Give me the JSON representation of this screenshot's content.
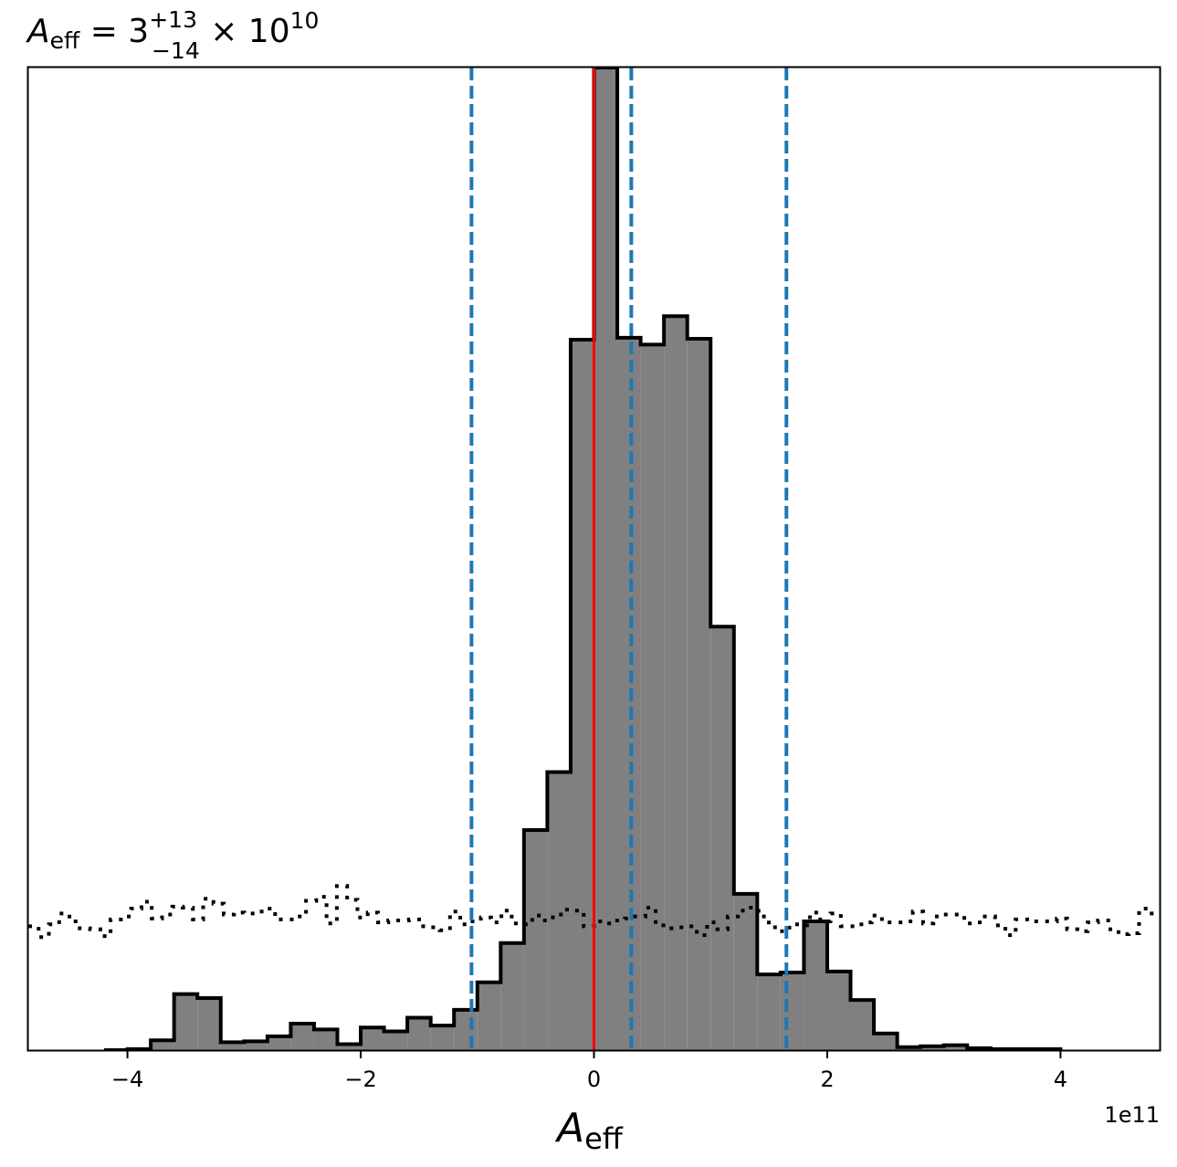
{
  "chart_data": {
    "type": "histogram",
    "title": {
      "main": "A",
      "main_sub": "eff",
      "equals": " = 3",
      "sup": "+13",
      "sub": "−14",
      "times": " × 10",
      "exp": "10"
    },
    "xlabel": {
      "main": "A",
      "sub": "eff"
    },
    "ylabel": "",
    "x_offset_label": "1e11",
    "xlim": [
      -4.85,
      4.85
    ],
    "ylim": [
      0,
      1.0
    ],
    "xticks": [
      -4,
      -2,
      0,
      2,
      4
    ],
    "xtick_labels": [
      "−4",
      "−2",
      "0",
      "2",
      "4"
    ],
    "yticks": [],
    "grid": false,
    "legend": "none",
    "bin_edges": [
      -4.2,
      -4.0,
      -3.8,
      -3.6,
      -3.4,
      -3.2,
      -3.0,
      -2.8,
      -2.6,
      -2.4,
      -2.2,
      -2.0,
      -1.8,
      -1.6,
      -1.4,
      -1.2,
      -1.0,
      -0.8,
      -0.6,
      -0.4,
      -0.2,
      0.0,
      0.2,
      0.4,
      0.6,
      0.8,
      1.0,
      1.2,
      1.4,
      1.6,
      1.8,
      2.0,
      2.2,
      2.4,
      2.6,
      2.8,
      3.0,
      3.2,
      3.4,
      3.6,
      3.8,
      4.0
    ],
    "series": [
      {
        "kind": "posterior-histogram",
        "fill": "#808080",
        "edge": "#000000",
        "counts": [
          0.0,
          0.001,
          0.01,
          0.057,
          0.053,
          0.008,
          0.009,
          0.014,
          0.027,
          0.021,
          0.006,
          0.023,
          0.019,
          0.033,
          0.025,
          0.041,
          0.069,
          0.109,
          0.224,
          0.283,
          0.723,
          1.0,
          0.725,
          0.718,
          0.747,
          0.724,
          0.431,
          0.159,
          0.077,
          0.079,
          0.131,
          0.08,
          0.051,
          0.017,
          0.003,
          0.004,
          0.005,
          0.002,
          0.001,
          0.001,
          0.001
        ]
      },
      {
        "kind": "prior-histogram",
        "line_style": "dotted",
        "edge": "#000000",
        "x_range": [
          -4.85,
          4.85
        ],
        "counts": [
          0.126,
          0.115,
          0.128,
          0.139,
          0.131,
          0.124,
          0.123,
          0.116,
          0.133,
          0.136,
          0.144,
          0.151,
          0.134,
          0.138,
          0.146,
          0.145,
          0.133,
          0.154,
          0.149,
          0.138,
          0.14,
          0.139,
          0.141,
          0.144,
          0.133,
          0.133,
          0.136,
          0.152,
          0.156,
          0.129,
          0.167,
          0.153,
          0.135,
          0.14,
          0.13,
          0.132,
          0.132,
          0.133,
          0.126,
          0.125,
          0.122,
          0.141,
          0.128,
          0.131,
          0.135,
          0.13,
          0.142,
          0.129,
          0.128,
          0.137,
          0.132,
          0.138,
          0.143,
          0.142,
          0.126,
          0.131,
          0.129,
          0.132,
          0.134,
          0.136,
          0.145,
          0.127,
          0.124,
          0.125,
          0.126,
          0.117,
          0.13,
          0.123,
          0.136,
          0.142,
          0.145,
          0.136,
          0.125,
          0.121,
          0.128,
          0.127,
          0.14,
          0.131,
          0.139,
          0.126,
          0.126,
          0.13,
          0.137,
          0.13,
          0.13,
          0.131,
          0.141,
          0.129,
          0.136,
          0.138,
          0.138,
          0.129,
          0.13,
          0.136,
          0.127,
          0.117,
          0.133,
          0.133,
          0.131,
          0.131,
          0.134,
          0.123,
          0.121,
          0.13,
          0.132,
          0.123,
          0.118,
          0.119,
          0.144,
          0.139
        ]
      }
    ],
    "vlines": [
      {
        "x": 0.0,
        "style": "solid",
        "color": "#ff0000"
      },
      {
        "x": -1.05,
        "style": "dashed",
        "color": "#1f77b4"
      },
      {
        "x": 0.32,
        "style": "dashed",
        "color": "#1f77b4"
      },
      {
        "x": 1.65,
        "style": "dashed",
        "color": "#1f77b4"
      }
    ]
  }
}
